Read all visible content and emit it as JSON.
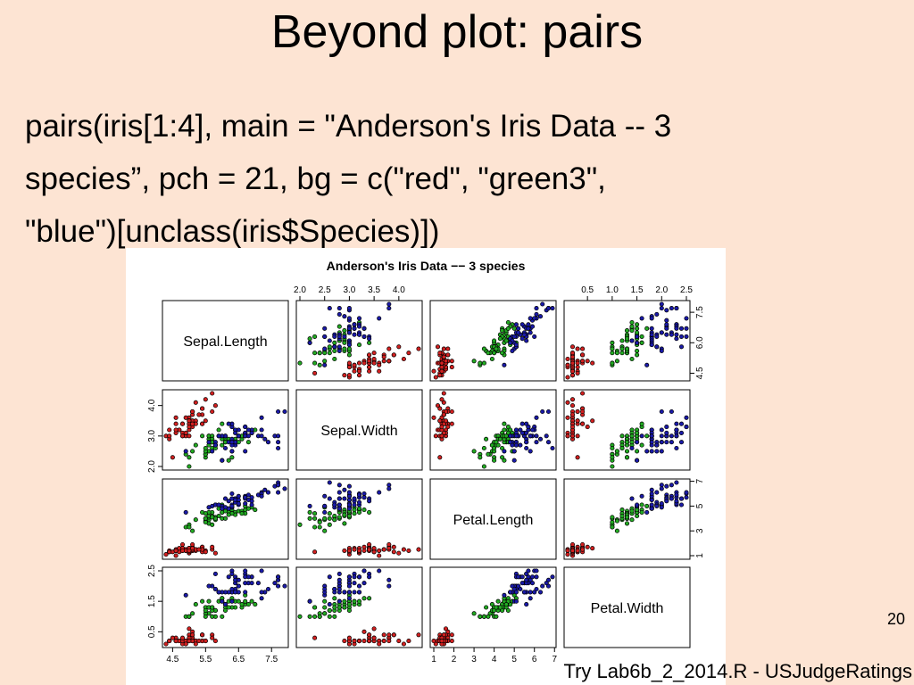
{
  "slide": {
    "title": "Beyond plot: pairs",
    "code_lines": [
      "pairs(iris[1:4], main = \"Anderson's Iris Data -- 3",
      "species”, pch = 21, bg = c(\"red\", \"green3\",",
      "\"blue\")[unclass(iris$Species)])"
    ],
    "page_number": "20",
    "footer_note": "Try Lab6b_2_2014.R - USJudgeRatings"
  },
  "colors": {
    "background": "#fde4d3",
    "setosa": "#d22020",
    "versicolor": "#22aa22",
    "virginica": "#1a1aa8"
  },
  "chart_data": {
    "type": "scatter",
    "title": "Anderson's Iris Data −− 3 species",
    "variables": [
      "Sepal.Length",
      "Sepal.Width",
      "Petal.Length",
      "Petal.Width"
    ],
    "axis_ranges": [
      [
        4.3,
        7.9
      ],
      [
        2.0,
        4.4
      ],
      [
        1.0,
        6.9
      ],
      [
        0.1,
        2.5
      ]
    ],
    "axis_ticks": {
      "top_col2": {
        "values": [
          2.0,
          2.5,
          3.0,
          3.5,
          4.0
        ],
        "labels": [
          "2.0",
          "2.5",
          "3.0",
          "3.5",
          "4.0"
        ]
      },
      "top_col4": {
        "values": [
          0.5,
          1.0,
          1.5,
          2.0,
          2.5
        ],
        "labels": [
          "0.5",
          "1.0",
          "1.5",
          "2.0",
          "2.5"
        ]
      },
      "right_row1": {
        "values": [
          4.5,
          6.0,
          7.5
        ],
        "labels": [
          "4.5",
          "6.0",
          "7.5"
        ]
      },
      "right_row3": {
        "values": [
          1,
          3,
          5,
          7
        ],
        "labels": [
          "1",
          "3",
          "5",
          "7"
        ]
      },
      "left_row2": {
        "values": [
          2.0,
          3.0,
          4.0
        ],
        "labels": [
          "2.0",
          "3.0",
          "4.0"
        ]
      },
      "left_row4": {
        "values": [
          0.5,
          1.5,
          2.5
        ],
        "labels": [
          "0.5",
          "1.5",
          "2.5"
        ]
      },
      "bottom_col1": {
        "values": [
          4.5,
          5.5,
          6.5,
          7.5
        ],
        "labels": [
          "4.5",
          "5.5",
          "6.5",
          "7.5"
        ]
      },
      "bottom_col3": {
        "values": [
          1,
          2,
          3,
          4,
          5,
          6,
          7
        ],
        "labels": [
          "1",
          "2",
          "3",
          "4",
          "5",
          "6",
          "7"
        ]
      }
    },
    "species": [
      {
        "color": "red",
        "points": [
          [
            5.1,
            3.5,
            1.4,
            0.2
          ],
          [
            4.9,
            3.0,
            1.4,
            0.2
          ],
          [
            4.7,
            3.2,
            1.3,
            0.2
          ],
          [
            4.6,
            3.1,
            1.5,
            0.2
          ],
          [
            5.0,
            3.6,
            1.4,
            0.2
          ],
          [
            5.4,
            3.9,
            1.7,
            0.4
          ],
          [
            4.6,
            3.4,
            1.4,
            0.3
          ],
          [
            5.0,
            3.4,
            1.5,
            0.2
          ],
          [
            4.4,
            2.9,
            1.4,
            0.2
          ],
          [
            4.9,
            3.1,
            1.5,
            0.1
          ],
          [
            5.4,
            3.7,
            1.5,
            0.2
          ],
          [
            4.8,
            3.4,
            1.6,
            0.2
          ],
          [
            4.8,
            3.0,
            1.4,
            0.1
          ],
          [
            4.3,
            3.0,
            1.1,
            0.1
          ],
          [
            5.8,
            4.0,
            1.2,
            0.2
          ],
          [
            5.7,
            4.4,
            1.5,
            0.4
          ],
          [
            5.4,
            3.9,
            1.3,
            0.4
          ],
          [
            5.1,
            3.5,
            1.4,
            0.3
          ],
          [
            5.7,
            3.8,
            1.7,
            0.3
          ],
          [
            5.1,
            3.8,
            1.5,
            0.3
          ],
          [
            5.4,
            3.4,
            1.7,
            0.2
          ],
          [
            5.1,
            3.7,
            1.5,
            0.4
          ],
          [
            4.6,
            3.6,
            1.0,
            0.2
          ],
          [
            5.1,
            3.3,
            1.7,
            0.5
          ],
          [
            4.8,
            3.4,
            1.9,
            0.2
          ],
          [
            5.0,
            3.0,
            1.6,
            0.2
          ],
          [
            5.0,
            3.4,
            1.6,
            0.4
          ],
          [
            5.2,
            3.5,
            1.5,
            0.2
          ],
          [
            5.2,
            3.4,
            1.4,
            0.2
          ],
          [
            4.7,
            3.2,
            1.6,
            0.2
          ],
          [
            4.8,
            3.1,
            1.6,
            0.2
          ],
          [
            5.4,
            3.4,
            1.5,
            0.4
          ],
          [
            5.2,
            4.1,
            1.5,
            0.1
          ],
          [
            5.5,
            4.2,
            1.4,
            0.2
          ],
          [
            4.9,
            3.1,
            1.5,
            0.2
          ],
          [
            5.0,
            3.2,
            1.2,
            0.2
          ],
          [
            5.5,
            3.5,
            1.3,
            0.2
          ],
          [
            4.9,
            3.6,
            1.4,
            0.1
          ],
          [
            4.4,
            3.0,
            1.3,
            0.2
          ],
          [
            5.1,
            3.4,
            1.5,
            0.2
          ],
          [
            5.0,
            3.5,
            1.3,
            0.3
          ],
          [
            4.5,
            2.3,
            1.3,
            0.3
          ],
          [
            4.4,
            3.2,
            1.3,
            0.2
          ],
          [
            5.0,
            3.5,
            1.6,
            0.6
          ],
          [
            5.1,
            3.8,
            1.9,
            0.4
          ],
          [
            4.8,
            3.0,
            1.4,
            0.3
          ],
          [
            5.1,
            3.8,
            1.6,
            0.2
          ],
          [
            4.6,
            3.2,
            1.4,
            0.2
          ],
          [
            5.3,
            3.7,
            1.5,
            0.2
          ],
          [
            5.0,
            3.3,
            1.4,
            0.2
          ]
        ]
      },
      {
        "color": "green3",
        "points": [
          [
            7.0,
            3.2,
            4.7,
            1.4
          ],
          [
            6.4,
            3.2,
            4.5,
            1.5
          ],
          [
            6.9,
            3.1,
            4.9,
            1.5
          ],
          [
            5.5,
            2.3,
            4.0,
            1.3
          ],
          [
            6.5,
            2.8,
            4.6,
            1.5
          ],
          [
            5.7,
            2.8,
            4.5,
            1.3
          ],
          [
            6.3,
            3.3,
            4.7,
            1.6
          ],
          [
            4.9,
            2.4,
            3.3,
            1.0
          ],
          [
            6.6,
            2.9,
            4.6,
            1.3
          ],
          [
            5.2,
            2.7,
            3.9,
            1.4
          ],
          [
            5.0,
            2.0,
            3.5,
            1.0
          ],
          [
            5.9,
            3.0,
            4.2,
            1.5
          ],
          [
            6.0,
            2.2,
            4.0,
            1.0
          ],
          [
            6.1,
            2.9,
            4.7,
            1.4
          ],
          [
            5.6,
            2.9,
            3.6,
            1.3
          ],
          [
            6.7,
            3.1,
            4.4,
            1.4
          ],
          [
            5.6,
            3.0,
            4.5,
            1.5
          ],
          [
            5.8,
            2.7,
            4.1,
            1.0
          ],
          [
            6.2,
            2.2,
            4.5,
            1.5
          ],
          [
            5.6,
            2.5,
            3.9,
            1.1
          ],
          [
            5.9,
            3.2,
            4.8,
            1.8
          ],
          [
            6.1,
            2.8,
            4.0,
            1.3
          ],
          [
            6.3,
            2.5,
            4.9,
            1.5
          ],
          [
            6.1,
            2.8,
            4.7,
            1.2
          ],
          [
            6.4,
            2.9,
            4.3,
            1.3
          ],
          [
            6.6,
            3.0,
            4.4,
            1.4
          ],
          [
            6.8,
            2.8,
            4.8,
            1.4
          ],
          [
            6.7,
            3.0,
            5.0,
            1.7
          ],
          [
            6.0,
            2.9,
            4.5,
            1.5
          ],
          [
            5.7,
            2.6,
            3.5,
            1.0
          ],
          [
            5.5,
            2.4,
            3.8,
            1.1
          ],
          [
            5.5,
            2.4,
            3.7,
            1.0
          ],
          [
            5.8,
            2.7,
            3.9,
            1.2
          ],
          [
            6.0,
            2.7,
            5.1,
            1.6
          ],
          [
            5.4,
            3.0,
            4.5,
            1.5
          ],
          [
            6.0,
            3.4,
            4.5,
            1.6
          ],
          [
            6.7,
            3.1,
            4.7,
            1.5
          ],
          [
            6.3,
            2.3,
            4.4,
            1.3
          ],
          [
            5.6,
            3.0,
            4.1,
            1.3
          ],
          [
            5.5,
            2.5,
            4.0,
            1.3
          ],
          [
            5.5,
            2.6,
            4.4,
            1.2
          ],
          [
            6.1,
            3.0,
            4.6,
            1.4
          ],
          [
            5.8,
            2.6,
            4.0,
            1.2
          ],
          [
            5.0,
            2.3,
            3.3,
            1.0
          ],
          [
            5.6,
            2.7,
            4.2,
            1.3
          ],
          [
            5.7,
            3.0,
            4.2,
            1.2
          ],
          [
            5.7,
            2.9,
            4.2,
            1.3
          ],
          [
            6.2,
            2.9,
            4.3,
            1.3
          ],
          [
            5.1,
            2.5,
            3.0,
            1.1
          ],
          [
            5.7,
            2.8,
            4.1,
            1.3
          ]
        ]
      },
      {
        "color": "blue",
        "points": [
          [
            6.3,
            3.3,
            6.0,
            2.5
          ],
          [
            5.8,
            2.7,
            5.1,
            1.9
          ],
          [
            7.1,
            3.0,
            5.9,
            2.1
          ],
          [
            6.3,
            2.9,
            5.6,
            1.8
          ],
          [
            6.5,
            3.0,
            5.8,
            2.2
          ],
          [
            7.6,
            3.0,
            6.6,
            2.1
          ],
          [
            4.9,
            2.5,
            4.5,
            1.7
          ],
          [
            7.3,
            2.9,
            6.3,
            1.8
          ],
          [
            6.7,
            2.5,
            5.8,
            1.8
          ],
          [
            7.2,
            3.6,
            6.1,
            2.5
          ],
          [
            6.5,
            3.2,
            5.1,
            2.0
          ],
          [
            6.4,
            2.7,
            5.3,
            1.9
          ],
          [
            6.8,
            3.0,
            5.5,
            2.1
          ],
          [
            5.7,
            2.5,
            5.0,
            2.0
          ],
          [
            5.8,
            2.8,
            5.1,
            2.4
          ],
          [
            6.4,
            3.2,
            5.3,
            2.3
          ],
          [
            6.5,
            3.0,
            5.5,
            1.8
          ],
          [
            7.7,
            3.8,
            6.7,
            2.2
          ],
          [
            7.7,
            2.6,
            6.9,
            2.3
          ],
          [
            6.0,
            2.2,
            5.0,
            1.5
          ],
          [
            6.9,
            3.2,
            5.7,
            2.3
          ],
          [
            5.6,
            2.8,
            4.9,
            2.0
          ],
          [
            7.7,
            2.8,
            6.7,
            2.0
          ],
          [
            6.3,
            2.7,
            4.9,
            1.8
          ],
          [
            6.7,
            3.3,
            5.7,
            2.1
          ],
          [
            7.2,
            3.2,
            6.0,
            1.8
          ],
          [
            6.2,
            2.8,
            4.8,
            1.8
          ],
          [
            6.1,
            3.0,
            4.9,
            1.8
          ],
          [
            6.4,
            2.8,
            5.6,
            2.1
          ],
          [
            7.2,
            3.0,
            5.8,
            1.6
          ],
          [
            7.4,
            2.8,
            6.1,
            1.9
          ],
          [
            7.9,
            3.8,
            6.4,
            2.0
          ],
          [
            6.4,
            2.8,
            5.6,
            2.2
          ],
          [
            6.3,
            2.8,
            5.1,
            1.5
          ],
          [
            6.1,
            2.6,
            5.6,
            1.4
          ],
          [
            7.7,
            3.0,
            6.1,
            2.3
          ],
          [
            6.3,
            3.4,
            5.6,
            2.4
          ],
          [
            6.4,
            3.1,
            5.5,
            1.8
          ],
          [
            6.0,
            3.0,
            4.8,
            1.8
          ],
          [
            6.9,
            3.1,
            5.4,
            2.1
          ],
          [
            6.7,
            3.1,
            5.6,
            2.4
          ],
          [
            6.9,
            3.1,
            5.1,
            2.3
          ],
          [
            5.8,
            2.7,
            5.1,
            1.9
          ],
          [
            6.8,
            3.2,
            5.9,
            2.3
          ],
          [
            6.7,
            3.3,
            5.7,
            2.5
          ],
          [
            6.7,
            3.0,
            5.2,
            2.3
          ],
          [
            6.3,
            2.5,
            5.0,
            1.9
          ],
          [
            6.5,
            3.0,
            5.2,
            2.0
          ],
          [
            6.2,
            3.4,
            5.4,
            2.3
          ],
          [
            5.9,
            3.0,
            5.1,
            1.8
          ]
        ]
      }
    ]
  }
}
